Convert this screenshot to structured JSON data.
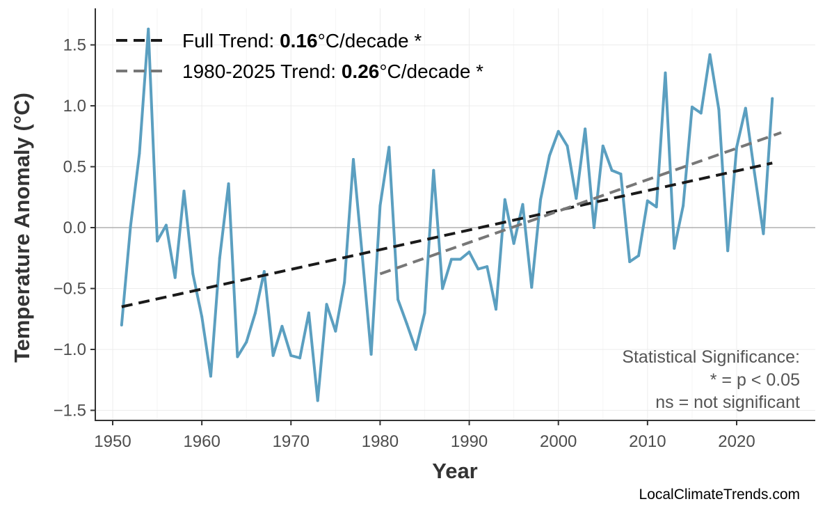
{
  "chart_data": {
    "type": "line",
    "title": "",
    "xlabel": "Year",
    "ylabel": "Temperature Anomaly (°C)",
    "xlim": [
      1947,
      2029
    ],
    "ylim": [
      -1.6,
      1.75
    ],
    "x_ticks": [
      1950,
      1960,
      1970,
      1980,
      1990,
      2000,
      2010,
      2020
    ],
    "y_ticks": [
      -1.5,
      -1.0,
      -0.5,
      0.0,
      0.5,
      1.0,
      1.5
    ],
    "y_tick_labels": [
      "−1.5",
      "−1.0",
      "−0.5",
      "0.0",
      "0.5",
      "1.0",
      "1.5"
    ],
    "grid": true,
    "zero_line": true,
    "legend_placement": "top-left",
    "series": [
      {
        "color": "#5b9fc0",
        "x": [
          1951,
          1952,
          1953,
          1954,
          1955,
          1956,
          1957,
          1958,
          1959,
          1960,
          1961,
          1962,
          1963,
          1964,
          1965,
          1966,
          1967,
          1968,
          1969,
          1970,
          1971,
          1972,
          1973,
          1974,
          1975,
          1976,
          1977,
          1978,
          1979,
          1980,
          1981,
          1982,
          1983,
          1984,
          1985,
          1986,
          1987,
          1988,
          1989,
          1990,
          1991,
          1992,
          1993,
          1994,
          1995,
          1996,
          1997,
          1998,
          1999,
          2000,
          2001,
          2002,
          2003,
          2004,
          2005,
          2006,
          2007,
          2008,
          2009,
          2010,
          2011,
          2012,
          2013,
          2014,
          2015,
          2016,
          2017,
          2018,
          2019,
          2020,
          2021,
          2022,
          2023,
          2024
        ],
        "y": [
          -0.8,
          0.01,
          0.61,
          1.63,
          -0.11,
          0.02,
          -0.41,
          0.3,
          -0.38,
          -0.73,
          -1.22,
          -0.25,
          0.36,
          -1.06,
          -0.94,
          -0.7,
          -0.36,
          -1.05,
          -0.81,
          -1.05,
          -1.07,
          -0.7,
          -1.42,
          -0.63,
          -0.85,
          -0.45,
          0.56,
          -0.23,
          -1.04,
          0.18,
          0.66,
          -0.59,
          -0.79,
          -1.0,
          -0.7,
          0.47,
          -0.5,
          -0.26,
          -0.26,
          -0.2,
          -0.34,
          -0.32,
          -0.67,
          0.23,
          -0.13,
          0.19,
          -0.49,
          0.23,
          0.59,
          0.79,
          0.67,
          0.24,
          0.81,
          0.0,
          0.67,
          0.47,
          0.44,
          -0.28,
          -0.23,
          0.22,
          0.17,
          1.27,
          -0.17,
          0.18,
          0.99,
          0.94,
          1.42,
          0.97,
          -0.19,
          0.66,
          0.98,
          0.45,
          -0.05,
          1.06
        ]
      }
    ],
    "trends": [
      {
        "label_prefix": "Full Trend: ",
        "value": "0.16",
        "label_suffix": "°C/decade *",
        "color": "#1a1a1a",
        "x": [
          1951,
          2024
        ],
        "y": [
          -0.65,
          0.53
        ]
      },
      {
        "label_prefix": "1980-2025 Trend: ",
        "value": "0.26",
        "label_suffix": "°C/decade *",
        "color": "#777777",
        "x": [
          1980,
          2025
        ],
        "y": [
          -0.38,
          0.78
        ]
      }
    ],
    "annotation": [
      "Statistical Significance:",
      "* = p < 0.05",
      "ns = not significant"
    ],
    "credit": "LocalClimateTrends.com"
  }
}
